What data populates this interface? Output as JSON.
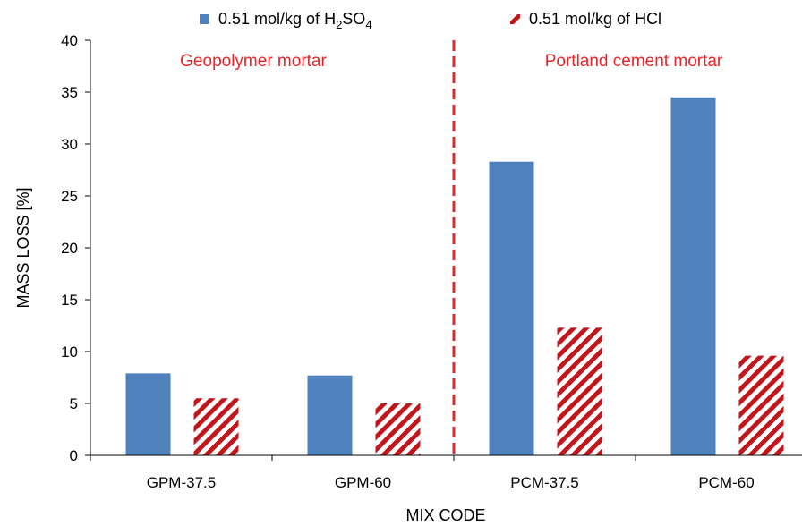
{
  "chart_data": {
    "type": "bar",
    "title": "",
    "xlabel": "MIX CODE",
    "ylabel": "MASS LOSS [%]",
    "ylim": [
      0,
      40
    ],
    "yticks": [
      0,
      5,
      10,
      15,
      20,
      25,
      30,
      35,
      40
    ],
    "categories": [
      "GPM-37.5",
      "GPM-60",
      "PCM-37.5",
      "PCM-60"
    ],
    "series": [
      {
        "name": "0.51 mol/kg of H2SO4",
        "legend_prefix": "0.51 mol/kg of H",
        "legend_sub1": "2",
        "legend_mid": "SO",
        "legend_sub2": "4",
        "values": [
          7.9,
          7.7,
          28.3,
          34.5
        ],
        "color": "#4f81bd",
        "pattern": "solid"
      },
      {
        "name": "0.51 mol/kg of HCl",
        "values": [
          5.5,
          5.0,
          12.3,
          9.6
        ],
        "color": "#c0161c",
        "pattern": "diagonal-stripes"
      }
    ],
    "annotations": [
      {
        "text": "Geopolymer mortar",
        "color": "#e8262a"
      },
      {
        "text": "Portland cement mortar",
        "color": "#e8262a"
      }
    ],
    "divider": {
      "style": "dashed",
      "color": "#e8262a",
      "between_categories": [
        1,
        2
      ]
    },
    "legend_position": "top",
    "grid": false
  }
}
